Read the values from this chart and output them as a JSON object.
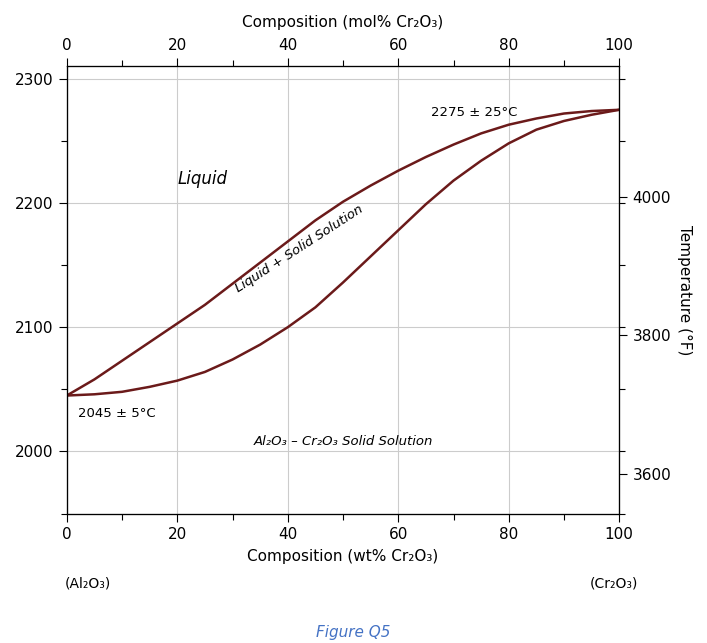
{
  "title_top": "Composition (mol% Cr₂O₃)",
  "xlabel_bottom": "Composition (wt% Cr₂O₃)",
  "ylabel_right": "Temperature (°F)",
  "figure_label": "Figure Q5",
  "x_label_left": "(Al₂O₃)",
  "x_label_right": "(Cr₂O₃)",
  "annotation_left": "2045 ± 5°C",
  "annotation_right": "2275 ± 25°C",
  "label_liquid": "Liquid",
  "label_two_phase": "Liquid + Solid Solution",
  "label_solid": "Al₂O₃ – Cr₂O₃ Solid Solution",
  "ylim": [
    1950,
    2310
  ],
  "xlim": [
    0,
    100
  ],
  "yticks_left": [
    2000,
    2100,
    2200,
    2300
  ],
  "yticks_right_vals": [
    3600,
    3800,
    4000
  ],
  "yticks_right_temps_c": [
    1982.22,
    2093.33,
    2204.44
  ],
  "xticks": [
    0,
    20,
    40,
    60,
    80,
    100
  ],
  "line_color": "#6B1A1A",
  "background_color": "#ffffff",
  "grid_color": "#cccccc",
  "liquidus_x": [
    0,
    5,
    10,
    15,
    20,
    25,
    30,
    35,
    40,
    45,
    50,
    55,
    60,
    65,
    70,
    75,
    80,
    85,
    90,
    95,
    100
  ],
  "liquidus_y": [
    2045,
    2058,
    2073,
    2088,
    2103,
    2118,
    2135,
    2152,
    2169,
    2186,
    2201,
    2214,
    2226,
    2237,
    2247,
    2256,
    2263,
    2268,
    2272,
    2274,
    2275
  ],
  "solidus_x": [
    0,
    5,
    10,
    15,
    20,
    25,
    30,
    35,
    40,
    45,
    50,
    55,
    60,
    65,
    70,
    75,
    80,
    85,
    90,
    95,
    100
  ],
  "solidus_y": [
    2045,
    2046,
    2048,
    2052,
    2057,
    2064,
    2074,
    2086,
    2100,
    2116,
    2136,
    2157,
    2178,
    2199,
    2218,
    2234,
    2248,
    2259,
    2266,
    2271,
    2275
  ]
}
